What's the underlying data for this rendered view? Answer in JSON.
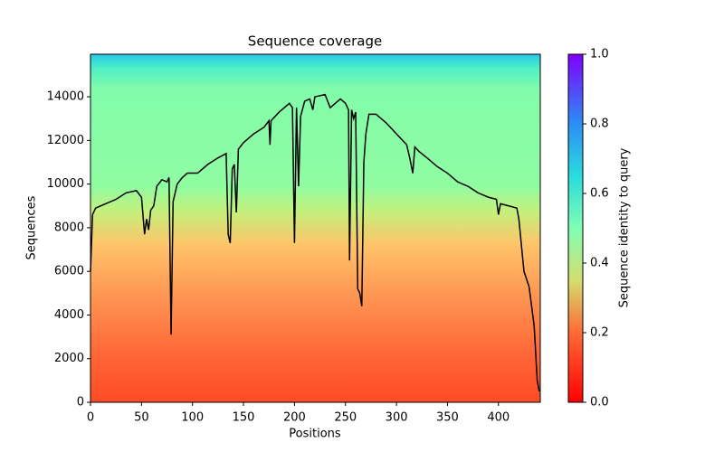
{
  "chart_data": {
    "type": "line",
    "title": "Sequence coverage",
    "x_label": "Positions",
    "y_label": "Sequences",
    "color": "#000000",
    "xlim": [
      0,
      441
    ],
    "ylim": [
      0,
      15950
    ],
    "xticks": [
      0,
      50,
      100,
      150,
      200,
      250,
      300,
      350,
      400
    ],
    "yticks": [
      0,
      2000,
      4000,
      6000,
      8000,
      10000,
      12000,
      14000
    ],
    "grid": false,
    "x": [
      0,
      2,
      5,
      15,
      25,
      35,
      45,
      50,
      53,
      55,
      57,
      59,
      62,
      65,
      70,
      75,
      77,
      79,
      81,
      85,
      90,
      95,
      105,
      115,
      125,
      133,
      135,
      137,
      139,
      141,
      143,
      145,
      150,
      160,
      170,
      175,
      176,
      177,
      185,
      195,
      198,
      200,
      202,
      204,
      206,
      210,
      215,
      218,
      220,
      230,
      235,
      240,
      245,
      250,
      253,
      254,
      256,
      258,
      260,
      262,
      264,
      266,
      268,
      270,
      273,
      280,
      290,
      300,
      310,
      313,
      316,
      318,
      322,
      330,
      340,
      350,
      360,
      370,
      380,
      390,
      398,
      400,
      402,
      410,
      418,
      420,
      425,
      430,
      435,
      438,
      440
    ],
    "values": [
      6000,
      8600,
      8900,
      9100,
      9300,
      9600,
      9700,
      9400,
      7700,
      8400,
      7900,
      8800,
      9000,
      9900,
      10200,
      10100,
      10300,
      3100,
      9200,
      10000,
      10300,
      10500,
      10500,
      10900,
      11200,
      11400,
      7700,
      7300,
      10700,
      10900,
      8700,
      11600,
      11900,
      12300,
      12600,
      12900,
      11800,
      12900,
      13300,
      13700,
      13500,
      7300,
      13500,
      9900,
      13100,
      13800,
      13900,
      13400,
      14000,
      14100,
      13500,
      13700,
      13900,
      13700,
      13400,
      6500,
      13400,
      13000,
      13300,
      5200,
      5000,
      4400,
      11000,
      12300,
      13200,
      13200,
      12800,
      12300,
      11800,
      11200,
      10500,
      11700,
      11500,
      11200,
      10800,
      10500,
      10100,
      9900,
      9600,
      9400,
      9300,
      8600,
      9100,
      9000,
      8900,
      8400,
      6000,
      5300,
      3500,
      1000,
      500
    ],
    "colorbar": {
      "label": "Sequence identity to query",
      "lim": [
        0,
        1
      ],
      "ticks": [
        {
          "value": 0,
          "label": "0.0"
        },
        0.2,
        0.4,
        0.6,
        0.8,
        {
          "value": 1,
          "label": "1.0"
        }
      ]
    }
  }
}
